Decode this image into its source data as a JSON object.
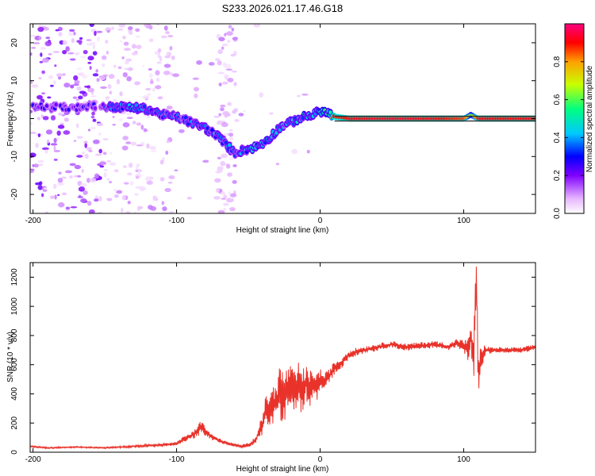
{
  "title": "S233.2026.021.17.46.G18",
  "chart_data": [
    {
      "type": "heatmap",
      "name": "spectrogram",
      "xlabel": "Height of straight line (km)",
      "ylabel": "Frequency (Hz)",
      "xlim": [
        -202,
        150
      ],
      "ylim": [
        -25,
        25
      ],
      "xticks": [
        -200,
        -100,
        0,
        100
      ],
      "yticks": [
        -20,
        -10,
        0,
        10,
        20
      ],
      "colorbar": {
        "label": "Normalized spectral amplitude",
        "range": [
          0.0,
          1.0
        ],
        "ticks": [
          0.0,
          0.2,
          0.4,
          0.6,
          0.8
        ],
        "colors": [
          "#ffffff",
          "#e6b3ff",
          "#8000ff",
          "#0000ff",
          "#00c8ff",
          "#00ff80",
          "#c8ff00",
          "#ffa000",
          "#ff0000",
          "#ff0080"
        ]
      },
      "ridge": {
        "x": [
          -150,
          -135,
          -120,
          -110,
          -100,
          -90,
          -80,
          -70,
          -60,
          -55,
          -50,
          -45,
          -40,
          -35,
          -30,
          -25,
          -20,
          -15,
          -10,
          -5,
          0,
          5,
          10,
          20,
          40,
          60,
          80,
          100,
          105,
          110,
          150
        ],
        "freq": [
          3,
          3,
          2.5,
          1,
          0.5,
          -1,
          -2.5,
          -5,
          -9,
          -8.5,
          -8,
          -7.5,
          -6.5,
          -5,
          -3,
          -1.5,
          -1,
          0,
          0.5,
          1,
          2,
          1.5,
          0.5,
          0,
          0,
          0,
          0,
          0,
          1,
          0,
          0
        ],
        "amp": [
          0.35,
          0.45,
          0.4,
          0.38,
          0.35,
          0.38,
          0.42,
          0.42,
          0.38,
          0.4,
          0.42,
          0.45,
          0.42,
          0.45,
          0.42,
          0.4,
          0.42,
          0.45,
          0.5,
          0.5,
          0.55,
          0.5,
          0.85,
          0.9,
          0.92,
          0.92,
          0.9,
          0.85,
          0.6,
          0.9,
          0.9
        ]
      }
    },
    {
      "type": "line",
      "name": "snr",
      "xlabel": "Height of straight line (km)",
      "ylabel": "SNR (10 * v/v)",
      "xlim": [
        -202,
        150
      ],
      "ylim": [
        0,
        1300
      ],
      "xticks": [
        -200,
        -100,
        0,
        100
      ],
      "yticks": [
        0,
        200,
        400,
        600,
        800,
        1000,
        1200
      ],
      "color": "#e8322a",
      "series": [
        {
          "name": "SNR",
          "x": [
            -202,
            -190,
            -170,
            -150,
            -130,
            -110,
            -100,
            -95,
            -90,
            -85,
            -82,
            -80,
            -75,
            -70,
            -65,
            -60,
            -55,
            -50,
            -45,
            -40,
            -38,
            -35,
            -30,
            -28,
            -25,
            -22,
            -20,
            -18,
            -15,
            -12,
            -10,
            -8,
            -5,
            -2,
            0,
            3,
            6,
            10,
            14,
            18,
            22,
            30,
            40,
            50,
            60,
            70,
            80,
            90,
            95,
            100,
            103,
            105,
            107,
            108,
            109,
            110,
            112,
            115,
            120,
            130,
            140,
            150
          ],
          "y": [
            40,
            30,
            35,
            30,
            40,
            50,
            60,
            90,
            110,
            150,
            180,
            140,
            100,
            80,
            60,
            50,
            40,
            50,
            80,
            200,
            280,
            300,
            350,
            420,
            380,
            450,
            420,
            400,
            450,
            420,
            480,
            400,
            480,
            450,
            500,
            480,
            520,
            580,
            600,
            650,
            680,
            700,
            720,
            740,
            720,
            730,
            740,
            720,
            750,
            730,
            700,
            800,
            650,
            1000,
            1250,
            500,
            650,
            700,
            700,
            700,
            700,
            720
          ],
          "amplitude": [
            10,
            10,
            10,
            10,
            15,
            20,
            25,
            40,
            50,
            90,
            100,
            60,
            40,
            30,
            25,
            20,
            20,
            30,
            60,
            150,
            200,
            250,
            300,
            400,
            350,
            300,
            350,
            300,
            350,
            300,
            250,
            300,
            200,
            200,
            150,
            120,
            100,
            90,
            80,
            70,
            60,
            50,
            50,
            50,
            50,
            50,
            50,
            50,
            60,
            80,
            150,
            200,
            300,
            350,
            300,
            250,
            200,
            60,
            40,
            40,
            40,
            40
          ]
        }
      ]
    }
  ]
}
